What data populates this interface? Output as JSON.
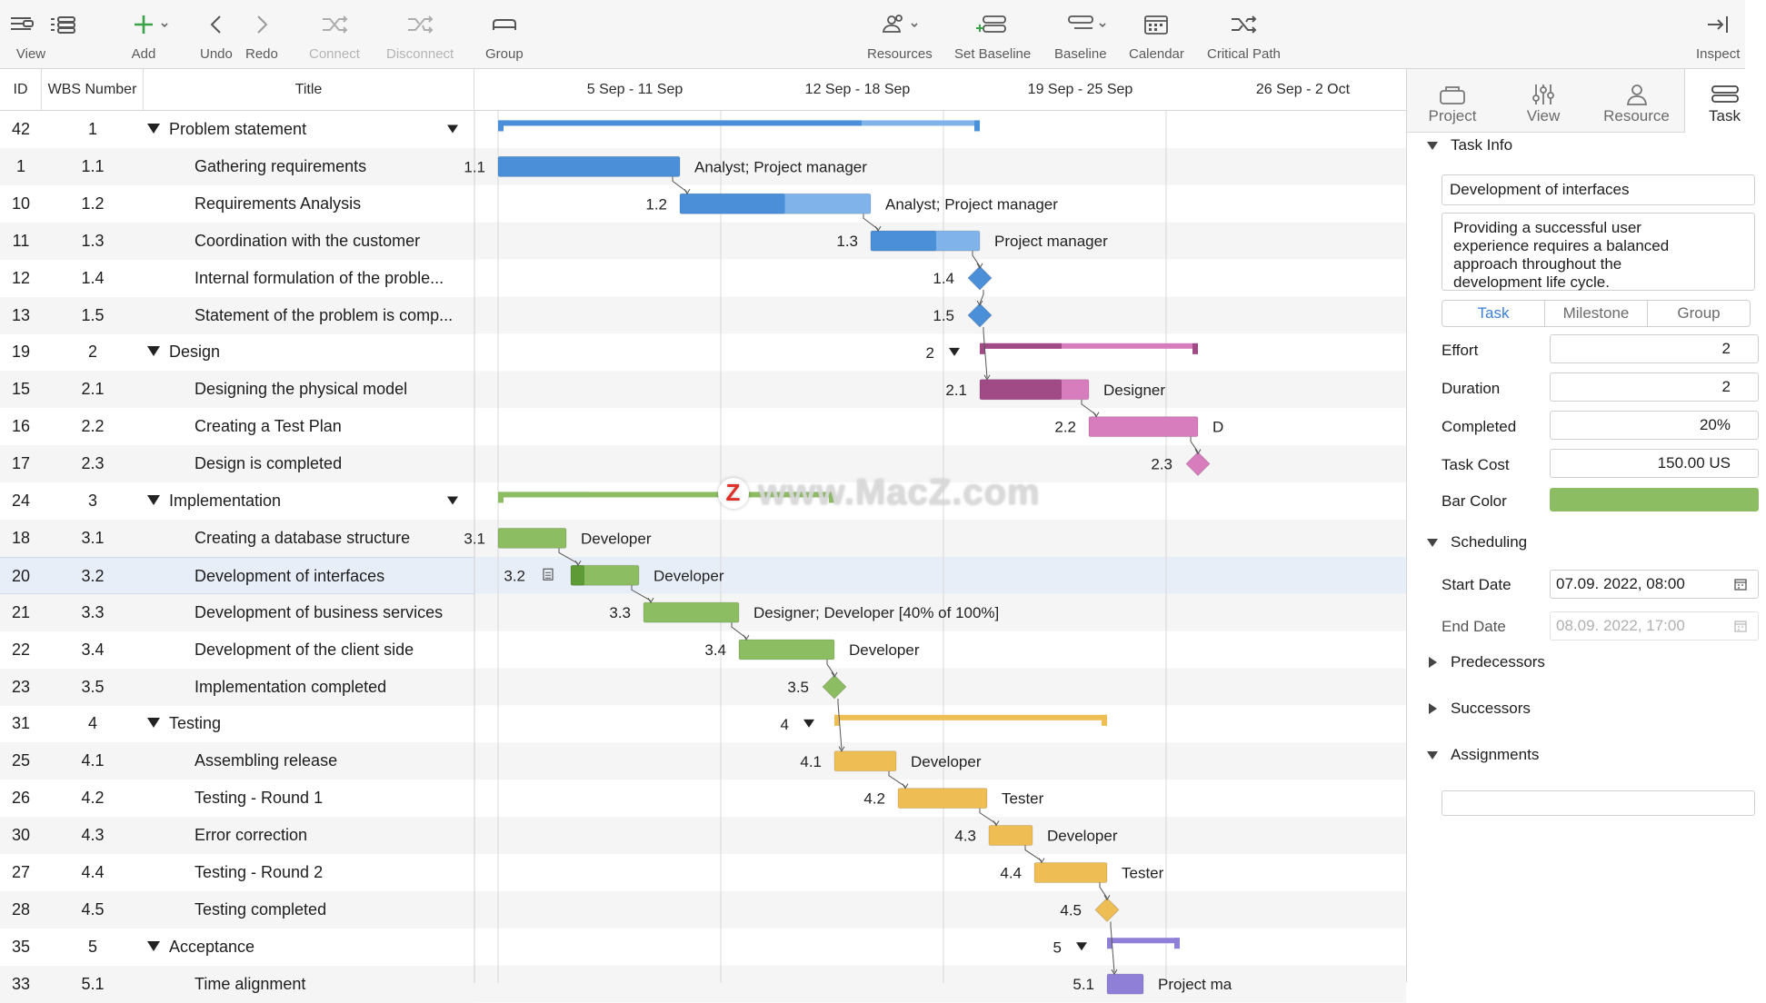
{
  "toolbar": {
    "view": "View",
    "add": "Add",
    "undo": "Undo",
    "redo": "Redo",
    "connect": "Connect",
    "disconnect": "Disconnect",
    "group": "Group",
    "resources": "Resources",
    "set_baseline": "Set Baseline",
    "baseline": "Baseline",
    "calendar": "Calendar",
    "critical_path": "Critical Path",
    "inspect": "Inspect"
  },
  "table": {
    "col_id": "ID",
    "col_wbs": "WBS Number",
    "col_title": "Title"
  },
  "weeks": [
    "5 Sep - 11 Sep",
    "12 Sep - 18 Sep",
    "19 Sep - 25 Sep",
    "26 Sep - 2 Oct"
  ],
  "rows": [
    {
      "id": "42",
      "wbs": "1",
      "title": "Problem statement",
      "kind": "group"
    },
    {
      "id": "1",
      "wbs": "1.1",
      "title": "Gathering requirements",
      "kind": "task"
    },
    {
      "id": "10",
      "wbs": "1.2",
      "title": "Requirements Analysis",
      "kind": "task"
    },
    {
      "id": "11",
      "wbs": "1.3",
      "title": "Coordination with the customer",
      "kind": "task"
    },
    {
      "id": "12",
      "wbs": "1.4",
      "title": "Internal formulation of the proble...",
      "kind": "task"
    },
    {
      "id": "13",
      "wbs": "1.5",
      "title": "Statement of the problem is comp...",
      "kind": "task"
    },
    {
      "id": "19",
      "wbs": "2",
      "title": "Design",
      "kind": "group"
    },
    {
      "id": "15",
      "wbs": "2.1",
      "title": "Designing the physical model",
      "kind": "task"
    },
    {
      "id": "16",
      "wbs": "2.2",
      "title": "Creating a Test Plan",
      "kind": "task"
    },
    {
      "id": "17",
      "wbs": "2.3",
      "title": "Design is completed",
      "kind": "task"
    },
    {
      "id": "24",
      "wbs": "3",
      "title": "Implementation",
      "kind": "group"
    },
    {
      "id": "18",
      "wbs": "3.1",
      "title": "Creating a database structure",
      "kind": "task"
    },
    {
      "id": "20",
      "wbs": "3.2",
      "title": "Development of interfaces",
      "kind": "task",
      "selected": true
    },
    {
      "id": "21",
      "wbs": "3.3",
      "title": "Development of business services",
      "kind": "task"
    },
    {
      "id": "22",
      "wbs": "3.4",
      "title": "Development of the client side",
      "kind": "task"
    },
    {
      "id": "23",
      "wbs": "3.5",
      "title": "Implementation completed",
      "kind": "task"
    },
    {
      "id": "31",
      "wbs": "4",
      "title": "Testing",
      "kind": "group"
    },
    {
      "id": "25",
      "wbs": "4.1",
      "title": "Assembling release",
      "kind": "task"
    },
    {
      "id": "26",
      "wbs": "4.2",
      "title": "Testing - Round 1",
      "kind": "task"
    },
    {
      "id": "30",
      "wbs": "4.3",
      "title": "Error correction",
      "kind": "task"
    },
    {
      "id": "27",
      "wbs": "4.4",
      "title": "Testing - Round 2",
      "kind": "task"
    },
    {
      "id": "28",
      "wbs": "4.5",
      "title": "Testing completed",
      "kind": "task"
    },
    {
      "id": "35",
      "wbs": "5",
      "title": "Acceptance",
      "kind": "group"
    },
    {
      "id": "33",
      "wbs": "5.1",
      "title": "Time alignment",
      "kind": "task"
    }
  ],
  "gantt": {
    "colors": {
      "blue": "#4a8fd8",
      "blue_light": "#7fb3ea",
      "magenta": "#a04a86",
      "pink": "#d77cbd",
      "green": "#8dbd62",
      "green_dark": "#5e9a35",
      "orange": "#eebe55",
      "purple": "#8f7fd6"
    },
    "items": [
      {
        "row": 0,
        "type": "summary",
        "label": "",
        "color": "blue",
        "start": 0,
        "end": 5.3,
        "done_to": 4.0
      },
      {
        "row": 1,
        "type": "bar",
        "label": "1.1",
        "resource": "Analyst; Project manager",
        "color": "blue",
        "start": 0,
        "end": 2.0,
        "progress": 1.0
      },
      {
        "row": 2,
        "type": "bar",
        "label": "1.2",
        "resource": "Analyst; Project manager",
        "color": "blue",
        "start": 2.0,
        "end": 4.1,
        "progress": 0.55
      },
      {
        "row": 3,
        "type": "bar",
        "label": "1.3",
        "resource": "Project manager",
        "color": "blue",
        "start": 4.1,
        "end": 5.3,
        "progress": 0.6
      },
      {
        "row": 4,
        "type": "milestone",
        "label": "1.4",
        "color": "blue",
        "start": 5.3
      },
      {
        "row": 5,
        "type": "milestone",
        "label": "1.5",
        "color": "blue",
        "start": 5.3
      },
      {
        "row": 6,
        "type": "summary",
        "label": "2",
        "color": "magenta",
        "start": 5.3,
        "end": 7.7,
        "done_to": 6.2
      },
      {
        "row": 7,
        "type": "bar",
        "label": "2.1",
        "resource": "Designer",
        "color": "magenta",
        "start": 5.3,
        "end": 6.5,
        "progress": 0.75
      },
      {
        "row": 8,
        "type": "bar",
        "label": "2.2",
        "resource": "D",
        "color": "pink",
        "start": 6.5,
        "end": 7.7,
        "progress": 0
      },
      {
        "row": 9,
        "type": "milestone",
        "label": "2.3",
        "color": "pink",
        "start": 7.7
      },
      {
        "row": 10,
        "type": "summary",
        "label": "",
        "color": "green",
        "start": 0,
        "end": 3.7,
        "done_to": 1.0
      },
      {
        "row": 11,
        "type": "bar",
        "label": "3.1",
        "resource": "Developer",
        "color": "green",
        "start": 0,
        "end": 0.75,
        "progress": 0
      },
      {
        "row": 12,
        "type": "bar",
        "label": "3.2",
        "resource": "Developer",
        "color": "green",
        "start": 0.8,
        "end": 1.55,
        "progress": 0.2,
        "note": true
      },
      {
        "row": 13,
        "type": "bar",
        "label": "3.3",
        "resource": "Designer; Developer [40% of 100%]",
        "color": "green",
        "start": 1.6,
        "end": 2.65,
        "progress": 0
      },
      {
        "row": 14,
        "type": "bar",
        "label": "3.4",
        "resource": "Developer",
        "color": "green",
        "start": 2.65,
        "end": 3.7,
        "progress": 0
      },
      {
        "row": 15,
        "type": "milestone",
        "label": "3.5",
        "color": "green",
        "start": 3.7
      },
      {
        "row": 16,
        "type": "summary",
        "label": "4",
        "color": "orange",
        "start": 3.7,
        "end": 6.7,
        "done_to": 3.7
      },
      {
        "row": 17,
        "type": "bar",
        "label": "4.1",
        "resource": "Developer",
        "color": "orange",
        "start": 3.7,
        "end": 4.38,
        "progress": 0
      },
      {
        "row": 18,
        "type": "bar",
        "label": "4.2",
        "resource": "Tester",
        "color": "orange",
        "start": 4.4,
        "end": 5.38,
        "progress": 0
      },
      {
        "row": 19,
        "type": "bar",
        "label": "4.3",
        "resource": "Developer",
        "color": "orange",
        "start": 5.4,
        "end": 5.88,
        "progress": 0
      },
      {
        "row": 20,
        "type": "bar",
        "label": "4.4",
        "resource": "Tester",
        "color": "orange",
        "start": 5.9,
        "end": 6.7,
        "progress": 0
      },
      {
        "row": 21,
        "type": "milestone",
        "label": "4.5",
        "color": "orange",
        "start": 6.7
      },
      {
        "row": 22,
        "type": "summary",
        "label": "5",
        "color": "purple",
        "start": 6.7,
        "end": 7.5,
        "done_to": 6.7
      },
      {
        "row": 23,
        "type": "bar",
        "label": "5.1",
        "resource": "Project ma",
        "color": "purple",
        "start": 6.7,
        "end": 7.1,
        "progress": 0
      }
    ]
  },
  "inspector": {
    "tabs": [
      "Project",
      "View",
      "Resource",
      "Task"
    ],
    "task_info_title": "Task Info",
    "task_name": "Development of interfaces",
    "task_notes": "Providing a successful user experience requires a balanced approach throughout the development life cycle.",
    "type_segments": [
      "Task",
      "Milestone",
      "Group"
    ],
    "effort_label": "Effort",
    "effort_value": "2",
    "duration_label": "Duration",
    "duration_value": "2",
    "completed_label": "Completed",
    "completed_value": "20%",
    "cost_label": "Task Cost",
    "cost_value": "150.00 US",
    "bar_color_label": "Bar Color",
    "bar_color": "#8dbd62",
    "scheduling_title": "Scheduling",
    "start_label": "Start Date",
    "start_value": "07.09. 2022, 08:00",
    "end_label": "End Date",
    "end_value": "08.09. 2022, 17:00",
    "predecessors_title": "Predecessors",
    "successors_title": "Successors",
    "assignments_title": "Assignments"
  },
  "watermark": "www.MacZ.com"
}
